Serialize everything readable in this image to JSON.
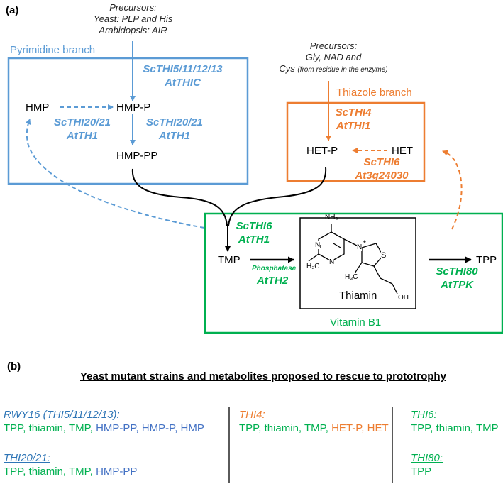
{
  "panel_a_label": "(a)",
  "panel_b_label": "(b)",
  "colors": {
    "pyrimidine": "#5b9bd5",
    "thiazole": "#ed7d31",
    "vitamin": "#00b050",
    "yeast_strain": "#2e75b6"
  },
  "precursors_pyrimidine": {
    "line1": "Precursors:",
    "line2": "Yeast: PLP and His",
    "line3": "Arabidopsis: AIR"
  },
  "precursors_thiazole": {
    "line1": "Precursors:",
    "line2": "Gly, NAD and",
    "line3_main": "Cys",
    "line3_note": "(from residue in the enzyme)"
  },
  "pyrimidine_branch": {
    "title": "Pyrimidine branch",
    "enzyme_top": {
      "line1": "ScTHI5/11/12/13",
      "line2": "AtTHIC"
    },
    "hmp": "HMP",
    "hmp_p": "HMP-P",
    "hmp_pp": "HMP-PP",
    "enzyme_left": {
      "line1": "ScTHI20/21",
      "line2": "AtTH1"
    },
    "enzyme_right": {
      "line1": "ScTHI20/21",
      "line2": "AtTH1"
    }
  },
  "thiazole_branch": {
    "title": "Thiazole branch",
    "enzyme_top": {
      "line1": "ScTHI4",
      "line2": "AtTHI1"
    },
    "het_p": "HET-P",
    "het": "HET",
    "enzyme_bottom": {
      "line1": "ScTHI6",
      "line2": "At3g24030"
    }
  },
  "vitamin_box": {
    "title": "Vitamin B1",
    "enzyme_top": {
      "line1": "ScTHI6",
      "line2": "AtTH1"
    },
    "tmp": "TMP",
    "phosphatase_label": "Phosphatase",
    "phosphatase_enzyme": "AtTH2",
    "thiamin_label": "Thiamin",
    "struct": {
      "nh2": "NH₂",
      "n1": "N",
      "n2": "N",
      "n3": "N",
      "plus": "+",
      "s": "S",
      "h3c1": "H₃C",
      "h3c2": "H₃C",
      "oh": "OH"
    },
    "tpp": "TPP",
    "enzyme_right": {
      "line1": "ScTHI80",
      "line2": "AtTPK"
    }
  },
  "panel_b": {
    "heading": "Yeast mutant strains and metabolites proposed to rescue to prototrophy",
    "col1": [
      {
        "strain": "RWY16",
        "strain_extra": "(THI5/11/12/13):",
        "green": "TPP, thiamin, TMP,",
        "blue": "HMP-PP, HMP-P, HMP"
      },
      {
        "strain": "THI20/21:",
        "green": "TPP, thiamin, TMP,",
        "blue": "HMP-PP"
      }
    ],
    "col2": [
      {
        "strain": "THI4:",
        "green": "TPP, thiamin, TMP,",
        "orange": "HET-P, HET"
      }
    ],
    "col3": [
      {
        "strain": "THI6:",
        "green": "TPP, thiamin, TMP"
      },
      {
        "strain": "THI80:",
        "green": "TPP"
      }
    ]
  }
}
